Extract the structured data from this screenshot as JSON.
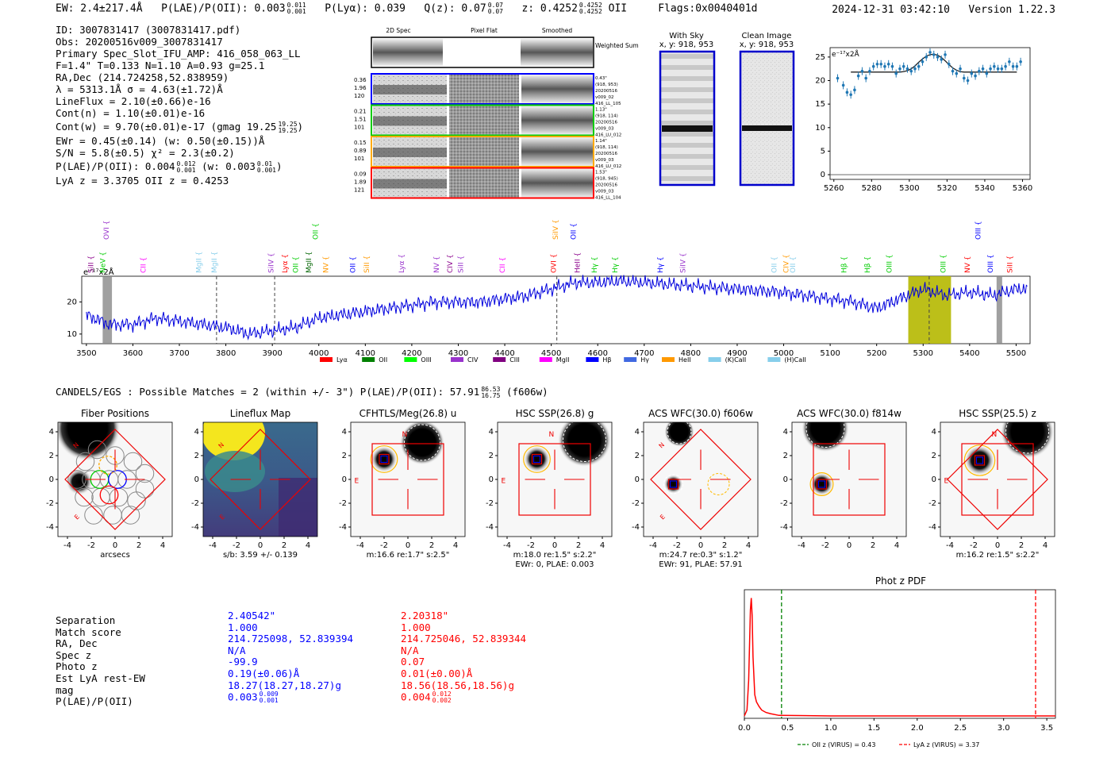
{
  "header": {
    "ew": "EW: 2.4±217.4Å",
    "plae_label": "P(LAE)/P(OII): 0.003",
    "plae_hi": "0.011",
    "plae_lo": "0.001",
    "plya": "P(Lyα): 0.039",
    "qz_label": "Q(z): 0.07",
    "qz_hi": "0.07",
    "qz_lo": "0.07",
    "z_label": "z: 0.4252",
    "z_hi": "0.4252",
    "z_lo": "0.4252",
    "z_line": "OII",
    "flags": "Flags:0x0040401d",
    "datetime": "2024-12-31 03:42:10",
    "version": "Version 1.22.3"
  },
  "info": {
    "id": "ID: 3007831417 (3007831417.pdf)",
    "obs": "Obs: 20200516v009_3007831417",
    "primary": "Primary Spec_Slot_IFU_AMP: 416_058_063_LL",
    "params": "F=1.4\"  T=0.133  N=1.10  A=0.93  g=25.1",
    "radec": "RA,Dec (214.724258,52.838959)",
    "lambda": "λ = 5313.1Å  σ = 4.63(±1.72)Å",
    "lineflux": "LineFlux = 2.10(±0.66)e-16",
    "cont_n": "Cont(n) = 1.10(±0.01)e-16",
    "cont_w": "Cont(w) = 9.70(±0.01)e-17 (gmag 19.25",
    "cont_w_hi": "19.25",
    "cont_w_lo": "19.25",
    "ewr": "EWr = 0.45(±0.14) (w: 0.50(±0.15))Å",
    "sn": "S/N = 5.8(±0.5)  χ² = 2.3(±0.2)",
    "plae": "P(LAE)/P(OII): 0.004",
    "plae_hi": "0.012",
    "plae_lo": "0.001",
    "plae_w": "(w: 0.003",
    "plae_w_hi": "0.01",
    "plae_w_lo": "0.001",
    "lyaz": "LyA z = 3.3705  OII z = 0.4253"
  },
  "cutouts": {
    "col_titles": [
      "2D Spec",
      "Pixel Flat",
      "Smoothed"
    ],
    "weighted_sum": "Weighted Sum",
    "rows": [
      {
        "left": [
          "0.36",
          "1.96",
          "120"
        ],
        "right": [
          "0.43\"",
          "(918, 953)",
          "20200516",
          "v009_02",
          "416_LL_105"
        ],
        "color": "#0000ff"
      },
      {
        "left": [
          "0.21",
          "1.51",
          "101"
        ],
        "right": [
          "1.13\"",
          "(918, 114)",
          "20200516",
          "v009_03",
          "416_LU_012"
        ],
        "color": "#00cc00"
      },
      {
        "left": [
          "0.15",
          "0.89",
          "101"
        ],
        "right": [
          "1.14\"",
          "(918, 114)",
          "20200516",
          "v009_03",
          "416_LU_012"
        ],
        "color": "#ffaa00"
      },
      {
        "left": [
          "0.09",
          "1.89",
          "121"
        ],
        "right": [
          "1.53\"",
          "(918, 945)",
          "20200516",
          "v009_03",
          "416_LL_104"
        ],
        "color": "#ff0000"
      }
    ]
  },
  "sky": {
    "with_sky_title": "With Sky",
    "with_sky_xy": "x, y: 918, 953",
    "clean_title": "Clean Image",
    "clean_xy": "x, y: 918, 953"
  },
  "zoom_plot": {
    "ylabel": "e⁻¹⁷x2Å",
    "x_ticks": [
      "5260",
      "5280",
      "5300",
      "5320",
      "5340",
      "5360"
    ],
    "y_ticks": [
      "0",
      "5",
      "10",
      "15",
      "20",
      "25"
    ]
  },
  "full_spectrum": {
    "ylabel": "e⁻¹⁷x2Å",
    "x_ticks": [
      "3500",
      "3600",
      "3700",
      "3800",
      "3900",
      "4000",
      "4100",
      "4200",
      "4300",
      "4400",
      "4500",
      "4600",
      "4700",
      "4800",
      "4900",
      "5000",
      "5100",
      "5200",
      "5300",
      "5400",
      "5500"
    ],
    "y_ticks": [
      "10",
      "20"
    ],
    "lines": [
      {
        "name": "SiII",
        "x": 3515,
        "color": "#8b008b",
        "row": 2
      },
      {
        "name": "NeV",
        "x": 3540,
        "color": "#00cc00",
        "row": 2
      },
      {
        "name": "OVI",
        "x": 3548,
        "color": "#9933cc",
        "row": 1
      },
      {
        "name": "CII",
        "x": 3627,
        "color": "#ff00ff",
        "row": 2
      },
      {
        "name": "MgII",
        "x": 3747,
        "color": "#87ceeb",
        "row": 2
      },
      {
        "name": "MgII",
        "x": 3780,
        "color": "#87ceeb",
        "row": 2
      },
      {
        "name": "SiIV",
        "x": 3902,
        "color": "#9933cc",
        "row": 2
      },
      {
        "name": "Lyα",
        "x": 3932,
        "color": "#ff0000",
        "row": 2
      },
      {
        "name": "OII",
        "x": 3955,
        "color": "#00cc00",
        "row": 2
      },
      {
        "name": "MgII",
        "x": 3983,
        "color": "#006400",
        "row": 2
      },
      {
        "name": "OII",
        "x": 3998,
        "color": "#00cc00",
        "row": 1
      },
      {
        "name": "NV",
        "x": 4020,
        "color": "#ff9900",
        "row": 2
      },
      {
        "name": "OII",
        "x": 4078,
        "color": "#0000ff",
        "row": 2
      },
      {
        "name": "SiII",
        "x": 4108,
        "color": "#ff9900",
        "row": 2
      },
      {
        "name": "Lyα",
        "x": 4183,
        "color": "#9933cc",
        "row": 2
      },
      {
        "name": "NV",
        "x": 4258,
        "color": "#9933cc",
        "row": 2
      },
      {
        "name": "CIV",
        "x": 4287,
        "color": "#8b008b",
        "row": 2
      },
      {
        "name": "SiII",
        "x": 4310,
        "color": "#9933cc",
        "row": 2
      },
      {
        "name": "CII",
        "x": 4400,
        "color": "#ff00ff",
        "row": 2
      },
      {
        "name": "OVI",
        "x": 4510,
        "color": "#ff0000",
        "row": 2
      },
      {
        "name": "SiIV",
        "x": 4514,
        "color": "#ff9900",
        "row": 1
      },
      {
        "name": "OII",
        "x": 4553,
        "color": "#0000ff",
        "row": 1
      },
      {
        "name": "HeII",
        "x": 4561,
        "color": "#8b008b",
        "row": 2
      },
      {
        "name": "Hγ",
        "x": 4598,
        "color": "#00cc00",
        "row": 2
      },
      {
        "name": "Hγ",
        "x": 4642,
        "color": "#00cc00",
        "row": 2
      },
      {
        "name": "Hγ",
        "x": 4740,
        "color": "#0000ff",
        "row": 2
      },
      {
        "name": "SiIV",
        "x": 4788,
        "color": "#9933cc",
        "row": 2
      },
      {
        "name": "OII",
        "x": 4985,
        "color": "#87ceeb",
        "row": 2
      },
      {
        "name": "CIV",
        "x": 5010,
        "color": "#ff9900",
        "row": 2
      },
      {
        "name": "OII",
        "x": 5025,
        "color": "#87ceeb",
        "row": 2
      },
      {
        "name": "Hβ",
        "x": 5135,
        "color": "#00cc00",
        "row": 2
      },
      {
        "name": "Hβ",
        "x": 5185,
        "color": "#00cc00",
        "row": 2
      },
      {
        "name": "OIII",
        "x": 5232,
        "color": "#00cc00",
        "row": 2
      },
      {
        "name": "OIII",
        "x": 5348,
        "color": "#00cc00",
        "row": 2
      },
      {
        "name": "NV",
        "x": 5400,
        "color": "#ff0000",
        "row": 2
      },
      {
        "name": "OIII",
        "x": 5423,
        "color": "#0000ff",
        "row": 1
      },
      {
        "name": "OIII",
        "x": 5450,
        "color": "#0000ff",
        "row": 2
      },
      {
        "name": "SiII",
        "x": 5492,
        "color": "#ff0000",
        "row": 2
      }
    ],
    "legend": [
      {
        "label": "Lyα",
        "color": "#ff0000"
      },
      {
        "label": "OII",
        "color": "#008000"
      },
      {
        "label": "OIII",
        "color": "#00ff00"
      },
      {
        "label": "CIV",
        "color": "#9933cc"
      },
      {
        "label": "CIII",
        "color": "#800080"
      },
      {
        "label": "MgII",
        "color": "#ff00ff"
      },
      {
        "label": "Hβ",
        "color": "#0000ff"
      },
      {
        "label": "Hγ",
        "color": "#4169e1"
      },
      {
        "label": "HeII",
        "color": "#ff9900"
      },
      {
        "label": "(K)CaII",
        "color": "#87ceeb"
      },
      {
        "label": "(H)CaII",
        "color": "#87ceeb"
      }
    ]
  },
  "candels": {
    "text": "CANDELS/EGS : Possible Matches = 2 (within +/- 3\")  P(LAE)/P(OII): 57.91",
    "hi": "86.53",
    "lo": "16.75",
    "band": "(f606w)"
  },
  "thumbnails": [
    {
      "title": "Fiber Positions",
      "caption1": "arcsecs",
      "caption2": ""
    },
    {
      "title": "Lineflux Map",
      "caption1": "s/b: 3.59 +/- 0.139",
      "caption2": ""
    },
    {
      "title": "CFHTLS/Meg(26.8) u",
      "caption1": "m:16.6  re:1.7\"  s:2.5\"",
      "caption2": ""
    },
    {
      "title": "HSC SSP(26.8) g",
      "caption1": "m:18.0  re:1.5\"  s:2.2\"",
      "caption2": "EWr: 0, PLAE: 0.003"
    },
    {
      "title": "ACS WFC(30.0) f606w",
      "caption1": "m:24.7  re:0.3\"  s:1.2\"",
      "caption2": "EWr: 91, PLAE: 57.91"
    },
    {
      "title": "ACS WFC(30.0) f814w",
      "caption1": "",
      "caption2": ""
    },
    {
      "title": "HSC SSP(25.5) z",
      "caption1": "m:16.2  re:1.5\"  s:2.2\"",
      "caption2": ""
    }
  ],
  "thumb_axis": {
    "ticks": [
      "-4",
      "-2",
      "0",
      "2",
      "4"
    ],
    "yticks": [
      "4",
      "2",
      "0",
      "-2",
      "-4"
    ],
    "n_label": "N",
    "e_label": "E"
  },
  "matches": {
    "labels": [
      "Separation",
      "Match score",
      "RA, Dec",
      "Spec z",
      "Photo z",
      "Est LyA rest-EW",
      "mag",
      "P(LAE)/P(OII)"
    ],
    "col1": [
      "2.40542\"",
      "1.000",
      "214.725098, 52.839394",
      "N/A",
      "-99.9",
      "0.19(±0.06)Å",
      "18.27(18.27,18.27)g",
      "0.003"
    ],
    "col1_plae_hi": "0.009",
    "col1_plae_lo": "0.001",
    "col2": [
      "2.20318\"",
      "1.000",
      "214.725046, 52.839344",
      "N/A",
      "0.07",
      "0.01(±0.00)Å",
      "18.56(18.56,18.56)g",
      "0.004"
    ],
    "col2_plae_hi": "0.012",
    "col2_plae_lo": "0.002",
    "col1_color": "#0000ff",
    "col2_color": "#ff0000"
  },
  "chart_data": [
    {
      "type": "line",
      "title": "",
      "xlabel": "",
      "ylabel": "e⁻¹⁷x2Å",
      "x": [
        5262,
        5265,
        5267,
        5269,
        5271,
        5273,
        5275,
        5277,
        5279,
        5281,
        5283,
        5285,
        5287,
        5289,
        5291,
        5293,
        5295,
        5297,
        5299,
        5301,
        5303,
        5305,
        5307,
        5309,
        5311,
        5313,
        5315,
        5317,
        5319,
        5321,
        5323,
        5325,
        5327,
        5329,
        5331,
        5333,
        5335,
        5337,
        5339,
        5341,
        5343,
        5345,
        5347,
        5349,
        5351,
        5353,
        5355,
        5357,
        5359
      ],
      "series": [
        {
          "name": "data",
          "values": [
            20.5,
            19,
            17.5,
            17,
            18,
            21,
            22,
            20.5,
            22,
            23,
            23.5,
            23.5,
            23,
            23.5,
            23,
            21.5,
            22.5,
            23,
            22.5,
            22,
            22.5,
            23,
            24,
            25,
            26,
            25.5,
            25,
            24.5,
            25.5,
            23.5,
            22,
            21.5,
            22.5,
            20.5,
            20,
            21.5,
            21,
            22,
            22.5,
            21.5,
            22.5,
            23,
            22.5,
            22.5,
            23,
            24,
            23,
            23,
            24
          ]
        },
        {
          "name": "fit",
          "values": [
            21.8,
            21.8,
            21.8,
            21.8,
            21.8,
            21.8,
            21.8,
            21.8,
            21.8,
            21.8,
            21.8,
            21.8,
            21.8,
            21.8,
            21.8,
            21.8,
            21.8,
            21.9,
            22.1,
            22.5,
            23.1,
            23.9,
            24.6,
            25.2,
            25.5,
            25.6,
            25.4,
            24.9,
            24.2,
            23.4,
            22.7,
            22.2,
            21.9,
            21.8,
            21.8,
            21.8,
            21.8,
            21.8,
            21.8,
            21.8,
            21.8,
            21.8,
            21.8,
            21.8,
            21.8,
            21.8,
            21.8,
            21.8,
            21.8
          ]
        }
      ],
      "xlim": [
        5258,
        5364
      ],
      "ylim": [
        -1,
        27
      ]
    },
    {
      "type": "line",
      "title": "",
      "xlabel": "",
      "ylabel": "e⁻¹⁷x2Å",
      "x": [
        3500,
        3550,
        3600,
        3650,
        3700,
        3750,
        3800,
        3850,
        3900,
        3950,
        4000,
        4050,
        4100,
        4150,
        4200,
        4250,
        4300,
        4350,
        4400,
        4450,
        4500,
        4550,
        4600,
        4650,
        4700,
        4750,
        4800,
        4850,
        4900,
        4950,
        5000,
        5050,
        5100,
        5150,
        5200,
        5250,
        5300,
        5350,
        5400,
        5450,
        5500,
        5525
      ],
      "series": [
        {
          "name": "spectrum",
          "values": [
            16,
            13,
            13,
            15,
            14,
            13,
            12,
            10,
            11,
            12,
            15,
            16,
            17,
            18,
            19,
            20,
            20,
            20,
            21,
            22,
            24,
            26,
            26,
            26.5,
            26,
            25.5,
            25,
            24.5,
            24,
            23.5,
            23,
            22,
            21,
            20,
            18,
            21,
            24,
            22,
            23,
            22,
            24,
            24
          ]
        }
      ],
      "xlim": [
        3490,
        5530
      ],
      "ylim": [
        7,
        28
      ]
    },
    {
      "type": "line",
      "title": "Phot z PDF",
      "xlabel": "",
      "ylabel": "",
      "x": [
        0.0,
        0.03,
        0.05,
        0.07,
        0.08,
        0.09,
        0.1,
        0.12,
        0.14,
        0.17,
        0.2,
        0.25,
        0.3,
        0.4,
        1.0,
        2.0,
        3.0,
        3.6
      ],
      "series": [
        {
          "name": "pdf",
          "values": [
            0.0,
            0.05,
            0.3,
            0.9,
            1.0,
            0.85,
            0.5,
            0.18,
            0.12,
            0.08,
            0.05,
            0.03,
            0.02,
            0.005,
            0.0,
            0.0,
            0.0,
            0.0
          ]
        }
      ],
      "xlim": [
        0.0,
        3.6
      ],
      "ylim": [
        -0.02,
        1.07
      ],
      "x_ticks": [
        "0.0",
        "0.5",
        "1.0",
        "1.5",
        "2.0",
        "2.5",
        "3.0",
        "3.5"
      ],
      "vlines": [
        {
          "x": 0.43,
          "color": "#008000",
          "label": "OII z (VIRUS) = 0.43"
        },
        {
          "x": 3.37,
          "color": "#ff0000",
          "label": "LyA z (VIRUS) = 3.37"
        }
      ]
    }
  ]
}
